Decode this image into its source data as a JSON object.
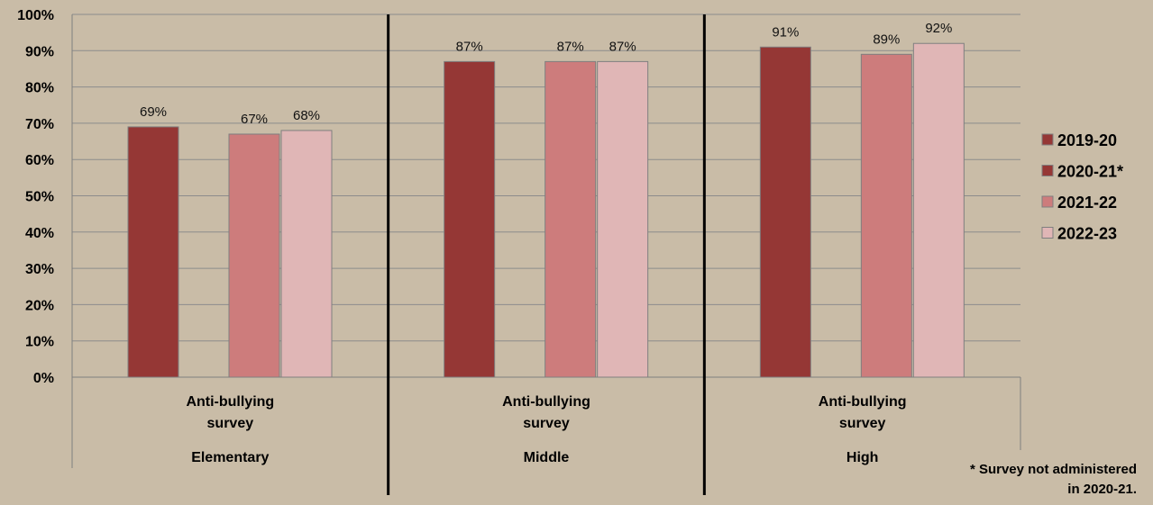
{
  "chart_data": {
    "type": "bar",
    "title": "",
    "xlabel": "",
    "ylabel": "",
    "ylim": [
      0,
      100
    ],
    "y_ticks": [
      "0%",
      "10%",
      "20%",
      "30%",
      "40%",
      "50%",
      "60%",
      "70%",
      "80%",
      "90%",
      "100%"
    ],
    "grid": true,
    "legend_position": "right",
    "groups": [
      {
        "name": "Elementary",
        "category": "Anti-bullying survey"
      },
      {
        "name": "Middle",
        "category": "Anti-bullying survey"
      },
      {
        "name": "High",
        "category": "Anti-bullying survey"
      }
    ],
    "series": [
      {
        "name": "2019-20",
        "color": "#953735",
        "values": [
          69,
          87,
          91
        ],
        "labels": [
          "69%",
          "87%",
          "91%"
        ]
      },
      {
        "name": "2020-21*",
        "color": "#953735",
        "values": [
          null,
          null,
          null
        ],
        "labels": [
          "",
          "",
          ""
        ]
      },
      {
        "name": "2021-22",
        "color": "#cd7c7c",
        "values": [
          67,
          87,
          89
        ],
        "labels": [
          "67%",
          "87%",
          "89%"
        ]
      },
      {
        "name": "2022-23",
        "color": "#e0b6b6",
        "values": [
          68,
          87,
          92
        ],
        "labels": [
          "68%",
          "87%",
          "92%"
        ]
      }
    ],
    "footnote": [
      "* Survey not administered",
      "in 2020-21."
    ]
  }
}
